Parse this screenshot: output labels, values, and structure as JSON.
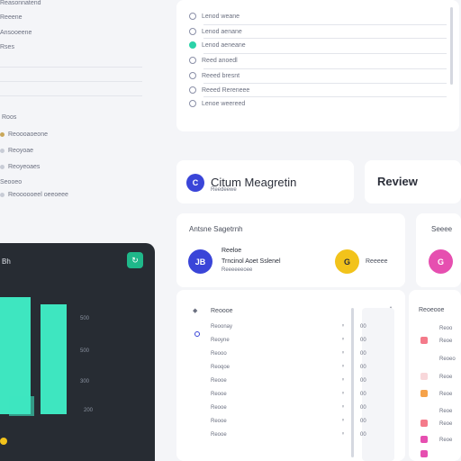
{
  "sidebar": {
    "items_top": [
      "Reasonnatend",
      "Reeene",
      "Ansooeene",
      "Rses"
    ],
    "section_label": "Roos",
    "items_bottom": [
      "Reoooaoeone",
      "Reoyoae",
      "Reoyeoaes",
      "Seooeo",
      "Reoooooeel oeeoeee"
    ]
  },
  "checklist": {
    "items": [
      "Lenod weane",
      "Lenod aenane",
      "Lenod aeneane",
      "Reed anoedl",
      "Reeed bresnt",
      "Reeed Rereneee",
      "Lenoe weereed"
    ],
    "active_index": 2
  },
  "profile_card": {
    "avatar_letter": "C",
    "name": "Citum Meagretin",
    "subtitle": "Reedeewe"
  },
  "review_card": {
    "title": "Review"
  },
  "assignees_card": {
    "title": "Antsne Sagetrnh",
    "person1": {
      "avatar_letter": "JB",
      "name": "Reeloe",
      "line2": "Trncinol  Aoet Sslenel",
      "line3": "Reeeeeeoee"
    },
    "person2": {
      "avatar_letter": "G",
      "name": "Reeeee"
    }
  },
  "right_card": {
    "title": "Seeee",
    "avatar_letter": "G"
  },
  "dark_panel": {
    "title": "Bh",
    "ticks": [
      "500",
      "500",
      "300",
      "200"
    ],
    "legend_label": "",
    "accent": "#3ee6c0"
  },
  "table": {
    "header": "Reoooe",
    "rows": [
      {
        "label": "Reoonay",
        "v": "00"
      },
      {
        "label": "Reoyne",
        "v": "00"
      },
      {
        "label": "Reooo",
        "v": "00"
      },
      {
        "label": "Reoqoe",
        "v": "00"
      },
      {
        "label": "Reooe",
        "v": "00"
      },
      {
        "label": "Reooe",
        "v": "00"
      },
      {
        "label": "Reooe",
        "v": "00"
      },
      {
        "label": "Reooe",
        "v": "00"
      },
      {
        "label": "Reooe",
        "v": "00"
      }
    ]
  },
  "right_table": {
    "header": "Reoeooe",
    "rows": [
      "Reoo",
      "Reoe",
      "Reoeo",
      "Reoe",
      "Reoe",
      "Reoe",
      "Reoe",
      "Reoe"
    ]
  },
  "colors": {
    "blue": "#3a45d8",
    "yellow": "#f2c31b",
    "pink": "#e64fb0",
    "teal": "#2bd2a8"
  }
}
